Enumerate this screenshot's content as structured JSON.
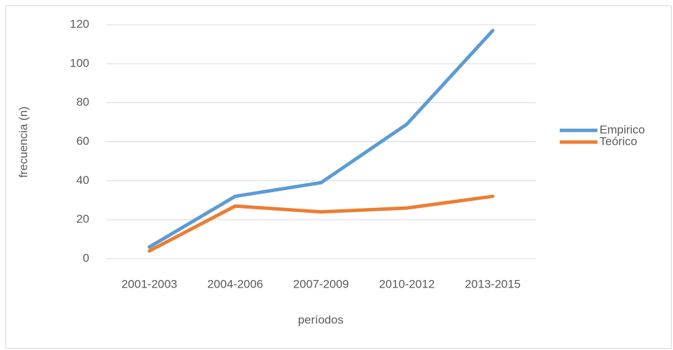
{
  "chart_data": {
    "type": "line",
    "x_label": "períodos",
    "y_label": "frecuencia (n)",
    "categories": [
      "2001-2003",
      "2004-2006",
      "2007-2009",
      "2010-2012",
      "2013-2015"
    ],
    "series": [
      {
        "name": "Empirico",
        "color": "#5b9bd5",
        "values": [
          6,
          32,
          39,
          69,
          117
        ]
      },
      {
        "name": "Teórico",
        "color": "#ed7d31",
        "values": [
          4,
          27,
          24,
          26,
          32
        ]
      }
    ],
    "ylim": [
      0,
      120
    ],
    "yticks": [
      0,
      20,
      40,
      60,
      80,
      100,
      120
    ],
    "grid": true,
    "legend": "right"
  }
}
